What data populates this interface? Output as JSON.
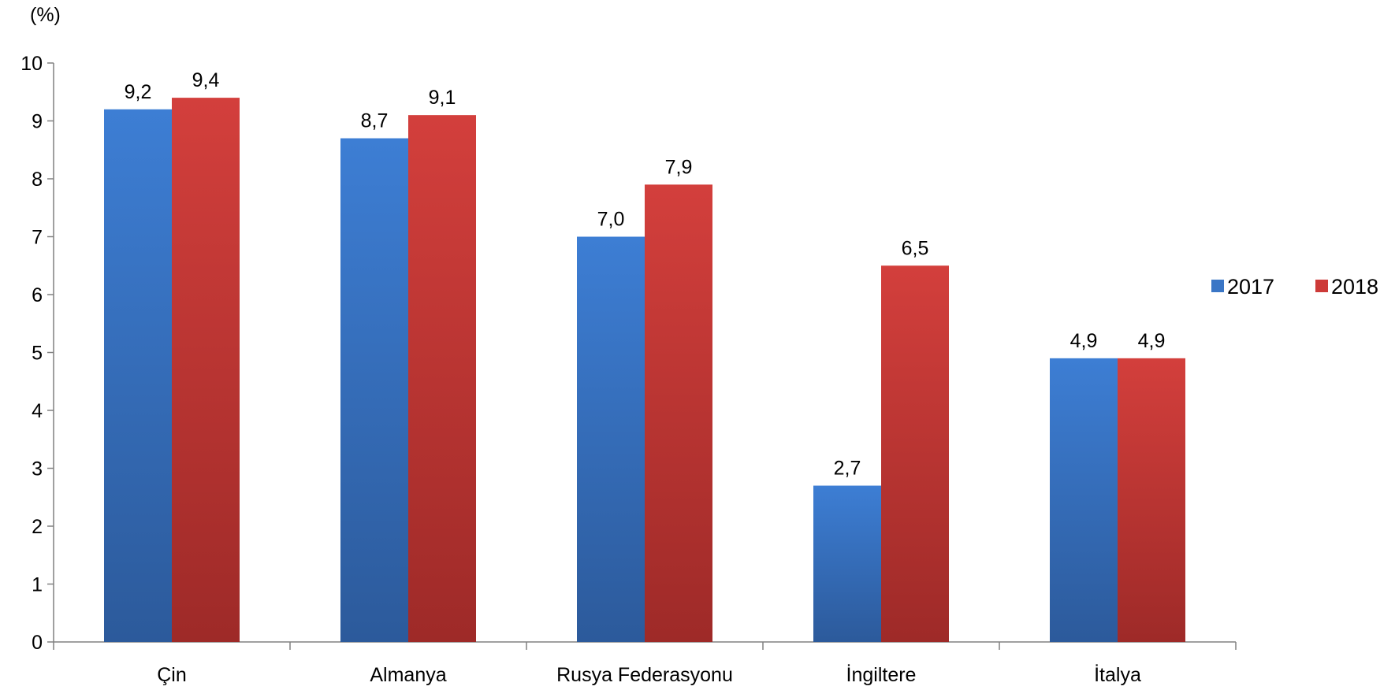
{
  "chart_data": {
    "type": "bar",
    "unit_label": "(%)",
    "categories": [
      "Çin",
      "Almanya",
      "Rusya Federasyonu",
      "İngiltere",
      "İtalya"
    ],
    "series": [
      {
        "name": "2017",
        "color": "#3a76c6",
        "values": [
          9.2,
          8.7,
          7.0,
          2.7,
          4.9
        ],
        "labels": [
          "9,2",
          "8,7",
          "7,0",
          "2,7",
          "4,9"
        ]
      },
      {
        "name": "2018",
        "color": "#cd3a38",
        "values": [
          9.4,
          9.1,
          7.9,
          6.5,
          4.9
        ],
        "labels": [
          "9,4",
          "9,1",
          "7,9",
          "6,5",
          "4,9"
        ]
      }
    ],
    "ylim": [
      0,
      10
    ],
    "yticks": [
      0,
      1,
      2,
      3,
      4,
      5,
      6,
      7,
      8,
      9,
      10
    ],
    "grid": false,
    "legend_position": "right"
  }
}
